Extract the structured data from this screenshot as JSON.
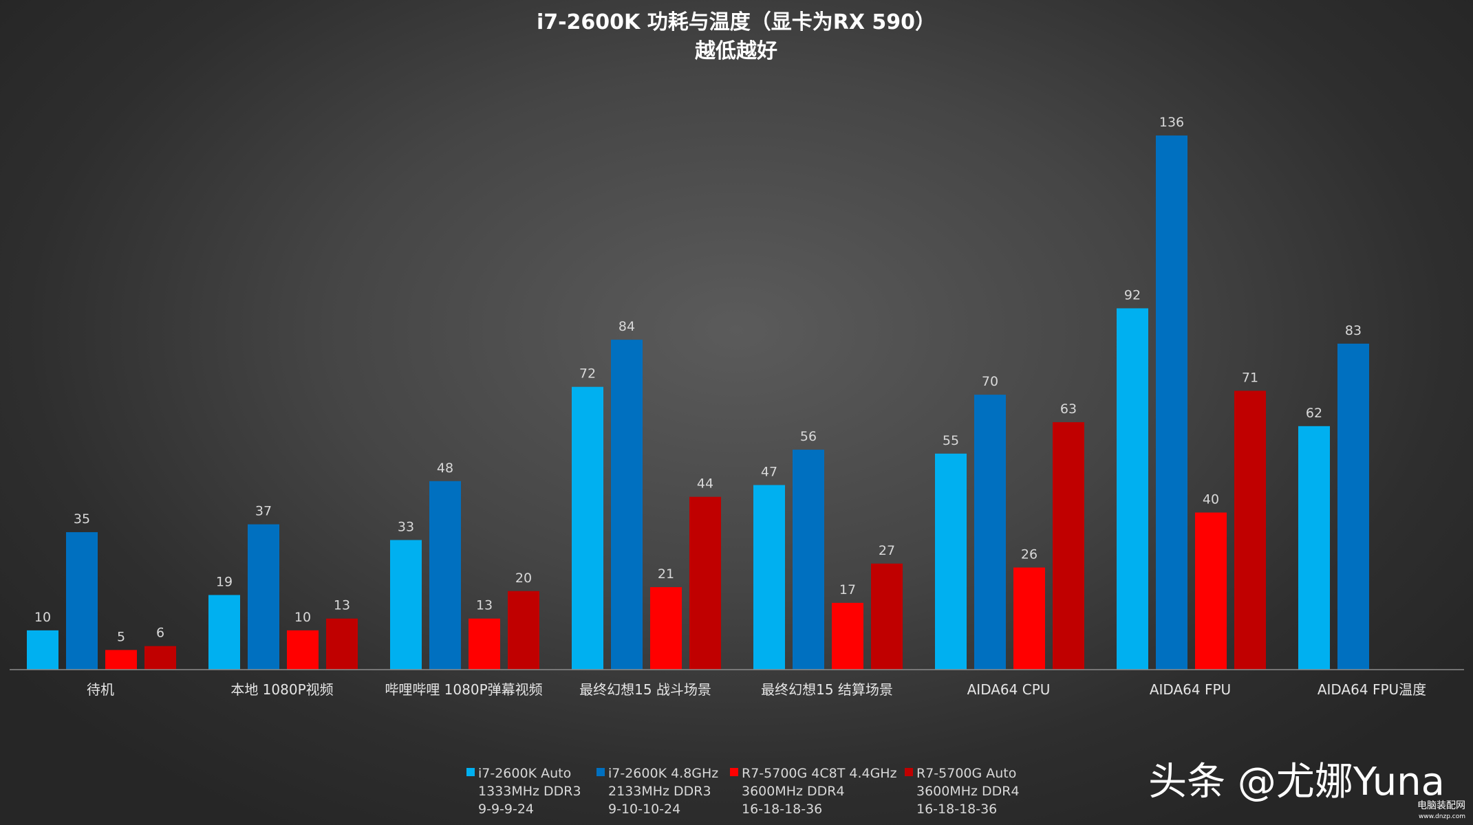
{
  "chart_data": {
    "type": "bar",
    "title": "i7-2600K 功耗与温度（显卡为RX 590）",
    "subtitle": "越低越好",
    "categories": [
      "待机",
      "本地 1080P视频",
      "哔哩哔哩 1080P弹幕视频",
      "最终幻想15 战斗场景",
      "最终幻想15 结算场景",
      "AIDA64 CPU",
      "AIDA64 FPU",
      "AIDA64 FPU温度"
    ],
    "series": [
      {
        "name": "i7-2600K Auto 1333MHz DDR3 9-9-9-24",
        "legend_lines": [
          "i7-2600K Auto",
          "1333MHz DDR3",
          "9-9-9-24"
        ],
        "color": "#00b0f0",
        "values": [
          10,
          19,
          33,
          72,
          47,
          55,
          92,
          62
        ]
      },
      {
        "name": "i7-2600K 4.8GHz 2133MHz DDR3 9-10-10-24",
        "legend_lines": [
          "i7-2600K 4.8GHz",
          "2133MHz DDR3",
          "9-10-10-24"
        ],
        "color": "#0070c0",
        "values": [
          35,
          37,
          48,
          84,
          56,
          70,
          136,
          83
        ]
      },
      {
        "name": "R7-5700G 4C8T 4.4GHz 3600MHz DDR4 16-18-18-36",
        "legend_lines": [
          "R7-5700G 4C8T 4.4GHz",
          "3600MHz DDR4",
          "16-18-18-36"
        ],
        "color": "#ff0000",
        "values": [
          5,
          10,
          13,
          21,
          17,
          26,
          40,
          null
        ]
      },
      {
        "name": "R7-5700G Auto 3600MHz DDR4 16-18-18-36",
        "legend_lines": [
          "R7-5700G Auto",
          "3600MHz DDR4",
          "16-18-18-36"
        ],
        "color": "#c00000",
        "values": [
          6,
          13,
          20,
          44,
          27,
          63,
          71,
          null
        ]
      }
    ],
    "ylim": [
      0,
      160
    ],
    "grid": false,
    "legend_position": "bottom"
  },
  "watermark": {
    "text": "头条 @尤娜Yuna",
    "site_name": "电脑装配网",
    "site_url": "www.dnzp.com"
  }
}
